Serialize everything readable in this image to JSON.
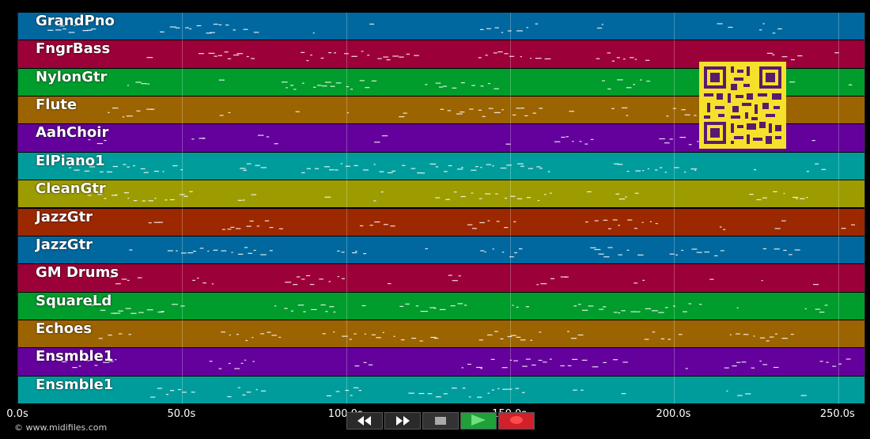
{
  "tracks": [
    {
      "name": "GrandPno",
      "color": "#00689e"
    },
    {
      "name": "FngrBass",
      "color": "#9c0038"
    },
    {
      "name": "NylonGtr",
      "color": "#009c2c"
    },
    {
      "name": "Flute",
      "color": "#9c6400"
    },
    {
      "name": "AahChoir",
      "color": "#64009c"
    },
    {
      "name": "ElPiano1",
      "color": "#009c9c"
    },
    {
      "name": "CleanGtr",
      "color": "#9c9c00"
    },
    {
      "name": "JazzGtr",
      "color": "#9c2800"
    },
    {
      "name": "JazzGtr",
      "color": "#00689e"
    },
    {
      "name": "GM Drums",
      "color": "#9c0038"
    },
    {
      "name": "SquareLd",
      "color": "#009c2c"
    },
    {
      "name": "Echoes",
      "color": "#9c6400"
    },
    {
      "name": "Ensmble1",
      "color": "#64009c"
    },
    {
      "name": "Ensmble1",
      "color": "#009c9c"
    }
  ],
  "axis": {
    "min": 0,
    "max": 258,
    "ticks": [
      {
        "value": 0,
        "label": "0.0s"
      },
      {
        "value": 50,
        "label": "50.0s"
      },
      {
        "value": 100,
        "label": "100.0s"
      },
      {
        "value": 150,
        "label": "150.0s"
      },
      {
        "value": 200,
        "label": "200.0s"
      },
      {
        "value": 250,
        "label": "250.0s"
      }
    ]
  },
  "footer": {
    "copyright": "© www.midifiles.com"
  },
  "controls": {
    "rewind_icon": "rewind-icon",
    "forward_icon": "fast-forward-icon",
    "stop_icon": "stop-icon",
    "play_icon": "play-icon",
    "record_icon": "record-icon",
    "play_color": "#1fa03a",
    "record_color": "#d0202a"
  }
}
